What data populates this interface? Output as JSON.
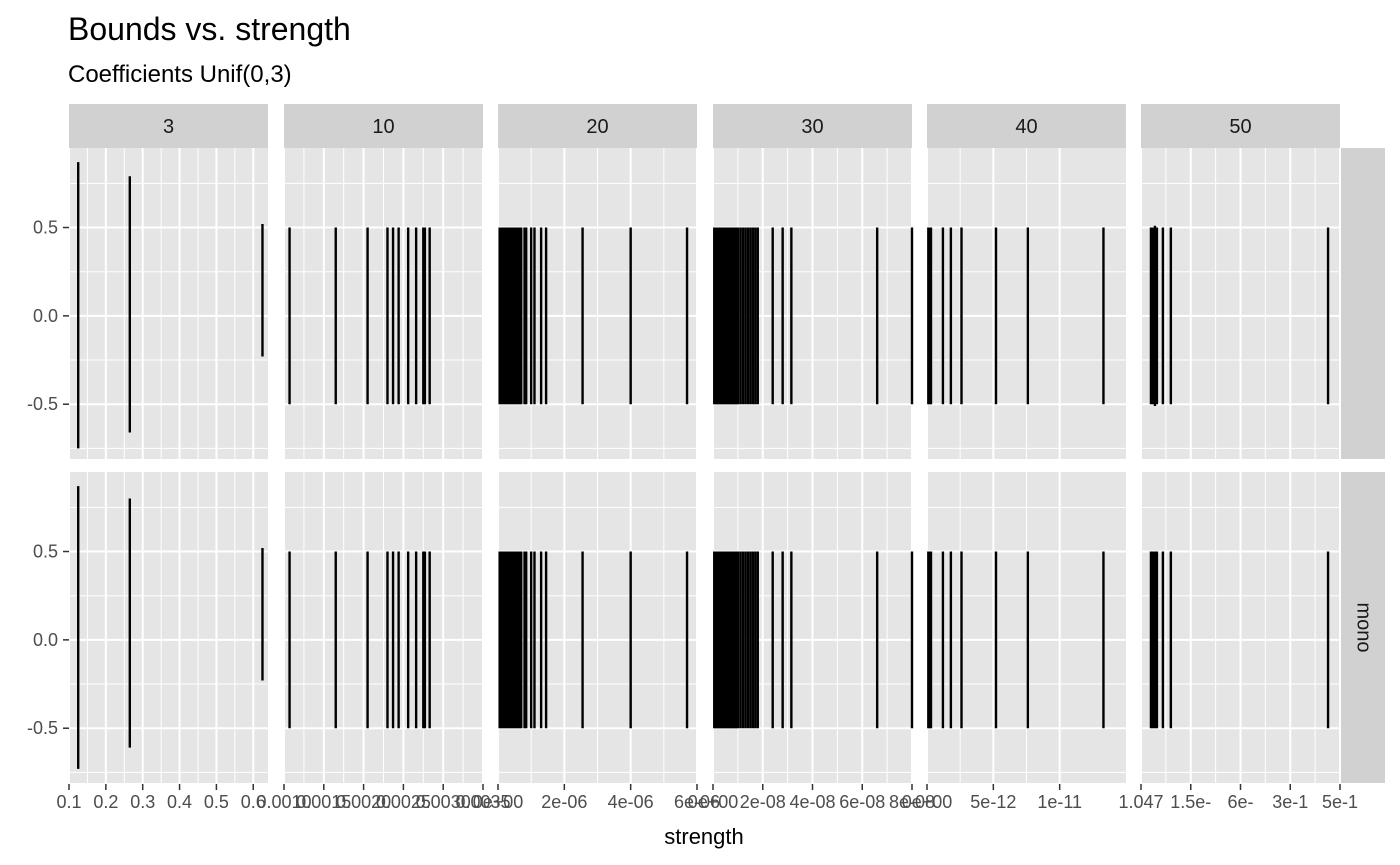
{
  "chart_data": {
    "type": "faceted-linerange",
    "title": "Bounds vs. strength",
    "subtitle": "Coefficients Unif(0,3)",
    "xlabel": "strength",
    "ylabel": "",
    "grid": true,
    "legend": "none",
    "colors": {
      "panel_bg": "#e5e5e5",
      "grid": "#ffffff",
      "strip_bg": "#d1d1d1",
      "mark": "#000000"
    },
    "y_ticks": [
      -0.5,
      0.0,
      0.5
    ],
    "y_tick_labels": [
      "-0.5",
      "0.0",
      "0.5"
    ],
    "ylim": [
      -0.81,
      0.95
    ],
    "rows": [
      {
        "label": ""
      },
      {
        "label": "mono"
      }
    ],
    "panels": [
      {
        "label": "3",
        "xlim": [
          0.1,
          0.64
        ],
        "x_ticks": [
          0.1,
          0.2,
          0.3,
          0.4,
          0.5,
          0.6
        ],
        "x_tick_labels": [
          "0.1",
          "0.2",
          "0.3",
          "0.4",
          "0.5",
          "0.6"
        ],
        "ranges": [
          [
            [
              0.125,
              -0.75,
              0.87
            ],
            [
              0.265,
              -0.66,
              0.79
            ],
            [
              0.625,
              -0.23,
              0.52
            ]
          ],
          [
            [
              0.125,
              -0.73,
              0.87
            ],
            [
              0.265,
              -0.61,
              0.8
            ],
            [
              0.625,
              -0.23,
              0.52
            ]
          ]
        ]
      },
      {
        "label": "10",
        "xlim": [
          0.001,
          0.0035
        ],
        "x_ticks": [
          0.001,
          0.0015,
          0.002,
          0.0025,
          0.003,
          0.0035
        ],
        "x_tick_labels": [
          "0.0010",
          "0.0015",
          "0.0020",
          "0.0025",
          "0.0030",
          "0.0035"
        ],
        "ranges": [
          [
            [
              0.00107,
              -0.5,
              0.5
            ],
            [
              0.00165,
              -0.5,
              0.5
            ],
            [
              0.00205,
              -0.5,
              0.5
            ],
            [
              0.0023,
              -0.5,
              0.5
            ],
            [
              0.00237,
              -0.5,
              0.5
            ],
            [
              0.00244,
              -0.5,
              0.5
            ],
            [
              0.00256,
              -0.5,
              0.5
            ],
            [
              0.00266,
              -0.5,
              0.5
            ],
            [
              0.00275,
              -0.5,
              0.5
            ],
            [
              0.00277,
              -0.5,
              0.5
            ],
            [
              0.00283,
              -0.5,
              0.5
            ]
          ],
          [
            [
              0.00107,
              -0.5,
              0.5
            ],
            [
              0.00165,
              -0.5,
              0.5
            ],
            [
              0.00205,
              -0.5,
              0.5
            ],
            [
              0.0023,
              -0.5,
              0.5
            ],
            [
              0.00237,
              -0.5,
              0.5
            ],
            [
              0.00244,
              -0.5,
              0.5
            ],
            [
              0.00256,
              -0.5,
              0.5
            ],
            [
              0.00266,
              -0.5,
              0.5
            ],
            [
              0.00275,
              -0.5,
              0.5
            ],
            [
              0.00277,
              -0.5,
              0.5
            ],
            [
              0.00283,
              -0.5,
              0.5
            ]
          ]
        ]
      },
      {
        "label": "20",
        "xlim": [
          0,
          6e-06
        ],
        "x_ticks": [
          0,
          2e-06,
          4e-06,
          6e-06
        ],
        "x_tick_labels": [
          "0e+00",
          "2e-06",
          "4e-06",
          "6e-06"
        ],
        "ranges": [
          [
            [
              5e-08,
              -0.5,
              0.5
            ],
            [
              1e-07,
              -0.5,
              0.5
            ],
            [
              1.5e-07,
              -0.5,
              0.5
            ],
            [
              2e-07,
              -0.5,
              0.5
            ],
            [
              2.5e-07,
              -0.5,
              0.5
            ],
            [
              3e-07,
              -0.5,
              0.5
            ],
            [
              3.5e-07,
              -0.5,
              0.5
            ],
            [
              4e-07,
              -0.5,
              0.5
            ],
            [
              4.5e-07,
              -0.5,
              0.5
            ],
            [
              5e-07,
              -0.5,
              0.5
            ],
            [
              5.5e-07,
              -0.5,
              0.5
            ],
            [
              6e-07,
              -0.5,
              0.5
            ],
            [
              6.5e-07,
              -0.5,
              0.5
            ],
            [
              7e-07,
              -0.5,
              0.5
            ],
            [
              8e-07,
              -0.5,
              0.5
            ],
            [
              8.5e-07,
              -0.5,
              0.5
            ],
            [
              1e-06,
              -0.5,
              0.5
            ],
            [
              1.1e-06,
              -0.5,
              0.5
            ],
            [
              1.3e-06,
              -0.5,
              0.5
            ],
            [
              1.45e-06,
              -0.5,
              0.5
            ],
            [
              2.55e-06,
              -0.5,
              0.5
            ],
            [
              4e-06,
              -0.5,
              0.5
            ],
            [
              5.7e-06,
              -0.5,
              0.5
            ]
          ],
          [
            [
              5e-08,
              -0.5,
              0.5
            ],
            [
              1e-07,
              -0.5,
              0.5
            ],
            [
              1.5e-07,
              -0.5,
              0.5
            ],
            [
              2e-07,
              -0.5,
              0.5
            ],
            [
              2.5e-07,
              -0.5,
              0.5
            ],
            [
              3e-07,
              -0.5,
              0.5
            ],
            [
              3.5e-07,
              -0.5,
              0.5
            ],
            [
              4e-07,
              -0.5,
              0.5
            ],
            [
              4.5e-07,
              -0.5,
              0.5
            ],
            [
              5e-07,
              -0.5,
              0.5
            ],
            [
              5.5e-07,
              -0.5,
              0.5
            ],
            [
              6e-07,
              -0.5,
              0.5
            ],
            [
              6.5e-07,
              -0.5,
              0.5
            ],
            [
              7e-07,
              -0.5,
              0.5
            ],
            [
              8e-07,
              -0.5,
              0.5
            ],
            [
              8.5e-07,
              -0.5,
              0.5
            ],
            [
              1e-06,
              -0.5,
              0.5
            ],
            [
              1.1e-06,
              -0.5,
              0.5
            ],
            [
              1.3e-06,
              -0.5,
              0.5
            ],
            [
              1.45e-06,
              -0.5,
              0.5
            ],
            [
              2.55e-06,
              -0.5,
              0.5
            ],
            [
              4e-06,
              -0.5,
              0.5
            ],
            [
              5.7e-06,
              -0.5,
              0.5
            ]
          ]
        ]
      },
      {
        "label": "30",
        "xlim": [
          0,
          8e-08
        ],
        "x_ticks": [
          0,
          2e-08,
          4e-08,
          6e-08,
          8e-08
        ],
        "x_tick_labels": [
          "0e+00",
          "2e-08",
          "4e-08",
          "6e-08",
          "8e-08"
        ],
        "ranges": [
          [
            [
              5e-10,
              -0.5,
              0.5
            ],
            [
              1e-09,
              -0.5,
              0.5
            ],
            [
              1.5e-09,
              -0.5,
              0.5
            ],
            [
              2e-09,
              -0.5,
              0.5
            ],
            [
              2.5e-09,
              -0.5,
              0.5
            ],
            [
              3e-09,
              -0.5,
              0.5
            ],
            [
              3.5e-09,
              -0.5,
              0.5
            ],
            [
              4e-09,
              -0.5,
              0.5
            ],
            [
              4.5e-09,
              -0.5,
              0.5
            ],
            [
              5e-09,
              -0.5,
              0.5
            ],
            [
              5.5e-09,
              -0.5,
              0.5
            ],
            [
              6e-09,
              -0.5,
              0.5
            ],
            [
              6.5e-09,
              -0.5,
              0.5
            ],
            [
              7e-09,
              -0.5,
              0.5
            ],
            [
              7.5e-09,
              -0.5,
              0.5
            ],
            [
              8e-09,
              -0.5,
              0.5
            ],
            [
              8.5e-09,
              -0.5,
              0.5
            ],
            [
              9e-09,
              -0.5,
              0.5
            ],
            [
              9.5e-09,
              -0.5,
              0.5
            ],
            [
              1e-08,
              -0.5,
              0.5
            ],
            [
              1.1e-08,
              -0.5,
              0.5
            ],
            [
              1.2e-08,
              -0.5,
              0.5
            ],
            [
              1.3e-08,
              -0.5,
              0.5
            ],
            [
              1.4e-08,
              -0.5,
              0.5
            ],
            [
              1.5e-08,
              -0.5,
              0.5
            ],
            [
              1.6e-08,
              -0.5,
              0.5
            ],
            [
              1.7e-08,
              -0.5,
              0.5
            ],
            [
              1.8e-08,
              -0.5,
              0.5
            ],
            [
              2.4e-08,
              -0.5,
              0.5
            ],
            [
              2.8e-08,
              -0.5,
              0.5
            ],
            [
              3.15e-08,
              -0.5,
              0.5
            ],
            [
              6.6e-08,
              -0.5,
              0.5
            ],
            [
              8e-08,
              -0.5,
              0.5
            ]
          ],
          [
            [
              5e-10,
              -0.5,
              0.5
            ],
            [
              1e-09,
              -0.5,
              0.5
            ],
            [
              1.5e-09,
              -0.5,
              0.5
            ],
            [
              2e-09,
              -0.5,
              0.5
            ],
            [
              2.5e-09,
              -0.5,
              0.5
            ],
            [
              3e-09,
              -0.5,
              0.5
            ],
            [
              3.5e-09,
              -0.5,
              0.5
            ],
            [
              4e-09,
              -0.5,
              0.5
            ],
            [
              4.5e-09,
              -0.5,
              0.5
            ],
            [
              5e-09,
              -0.5,
              0.5
            ],
            [
              5.5e-09,
              -0.5,
              0.5
            ],
            [
              6e-09,
              -0.5,
              0.5
            ],
            [
              6.5e-09,
              -0.5,
              0.5
            ],
            [
              7e-09,
              -0.5,
              0.5
            ],
            [
              7.5e-09,
              -0.5,
              0.5
            ],
            [
              8e-09,
              -0.5,
              0.5
            ],
            [
              8.5e-09,
              -0.5,
              0.5
            ],
            [
              9e-09,
              -0.5,
              0.5
            ],
            [
              9.5e-09,
              -0.5,
              0.5
            ],
            [
              1e-08,
              -0.5,
              0.5
            ],
            [
              1.1e-08,
              -0.5,
              0.5
            ],
            [
              1.2e-08,
              -0.5,
              0.5
            ],
            [
              1.3e-08,
              -0.5,
              0.5
            ],
            [
              1.4e-08,
              -0.5,
              0.5
            ],
            [
              1.5e-08,
              -0.5,
              0.5
            ],
            [
              1.6e-08,
              -0.5,
              0.5
            ],
            [
              1.7e-08,
              -0.5,
              0.5
            ],
            [
              1.8e-08,
              -0.5,
              0.5
            ],
            [
              2.4e-08,
              -0.5,
              0.5
            ],
            [
              2.8e-08,
              -0.5,
              0.5
            ],
            [
              3.15e-08,
              -0.5,
              0.5
            ],
            [
              6.6e-08,
              -0.5,
              0.5
            ],
            [
              8e-08,
              -0.5,
              0.5
            ]
          ]
        ]
      },
      {
        "label": "40",
        "xlim": [
          0,
          1.5e-11
        ],
        "x_ticks": [
          0,
          5e-12,
          1e-11
        ],
        "x_tick_labels": [
          "0e+00",
          "5e-12",
          "1e-11"
        ],
        "ranges": [
          [
            [
              1e-13,
              -0.5,
              0.5
            ],
            [
              2e-13,
              -0.5,
              0.5
            ],
            [
              3e-13,
              -0.5,
              0.5
            ],
            [
              1.2e-12,
              -0.5,
              0.5
            ],
            [
              1.8e-12,
              -0.5,
              0.5
            ],
            [
              2.6e-12,
              -0.5,
              0.5
            ],
            [
              5.2e-12,
              -0.5,
              0.5
            ],
            [
              7.6e-12,
              -0.5,
              0.5
            ],
            [
              1.33e-11,
              -0.5,
              0.5
            ]
          ],
          [
            [
              1e-13,
              -0.5,
              0.5
            ],
            [
              2e-13,
              -0.5,
              0.5
            ],
            [
              3e-13,
              -0.5,
              0.5
            ],
            [
              1.2e-12,
              -0.5,
              0.5
            ],
            [
              1.8e-12,
              -0.5,
              0.5
            ],
            [
              2.6e-12,
              -0.5,
              0.5
            ],
            [
              5.2e-12,
              -0.5,
              0.5
            ],
            [
              7.6e-12,
              -0.5,
              0.5
            ],
            [
              1.33e-11,
              -0.5,
              0.5
            ]
          ]
        ]
      },
      {
        "label": "50",
        "xlim": [
          0,
          1
        ],
        "x_ticks": [
          0,
          0.25,
          0.5,
          0.75,
          1.0
        ],
        "x_tick_labels": [
          "1.047",
          "1.5e-",
          "6e-",
          "3e-1",
          "5e-1"
        ],
        "x_label_overlap_text": "1.047569385232629838335536757186105e-1",
        "ranges": [
          [
            [
              0.05,
              -0.5,
              0.5
            ],
            [
              0.06,
              -0.5,
              0.5
            ],
            [
              0.07,
              -0.51,
              0.51
            ],
            [
              0.08,
              -0.5,
              0.5
            ],
            [
              0.11,
              -0.5,
              0.5
            ],
            [
              0.15,
              -0.5,
              0.5
            ],
            [
              0.94,
              -0.5,
              0.5
            ]
          ],
          [
            [
              0.05,
              -0.5,
              0.5
            ],
            [
              0.06,
              -0.5,
              0.5
            ],
            [
              0.07,
              -0.5,
              0.5
            ],
            [
              0.08,
              -0.5,
              0.5
            ],
            [
              0.11,
              -0.5,
              0.5
            ],
            [
              0.15,
              -0.5,
              0.5
            ],
            [
              0.94,
              -0.5,
              0.5
            ]
          ]
        ]
      }
    ]
  }
}
